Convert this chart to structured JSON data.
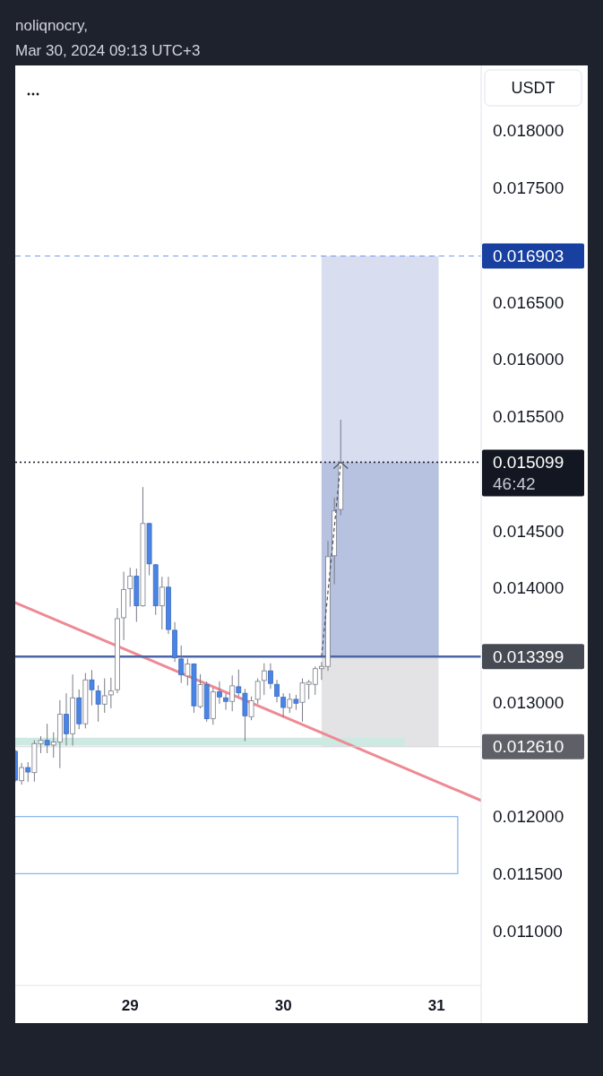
{
  "chart_data": {
    "type": "candlestick",
    "title": "noliqnocry,",
    "subtitle": "Mar 30, 2024 09:13 UTC+3",
    "ylabel": "USDT",
    "x": [
      "2024-03-28T06:00",
      "2024-03-28T07:00",
      "2024-03-28T08:00",
      "2024-03-28T09:00",
      "2024-03-28T10:00",
      "2024-03-28T11:00",
      "2024-03-28T12:00",
      "2024-03-28T13:00",
      "2024-03-28T14:00",
      "2024-03-28T15:00",
      "2024-03-28T16:00",
      "2024-03-28T17:00",
      "2024-03-28T18:00",
      "2024-03-28T19:00",
      "2024-03-28T20:00",
      "2024-03-28T21:00",
      "2024-03-28T22:00",
      "2024-03-28T23:00",
      "2024-03-29T00:00",
      "2024-03-29T01:00",
      "2024-03-29T02:00",
      "2024-03-29T03:00",
      "2024-03-29T04:00",
      "2024-03-29T05:00",
      "2024-03-29T06:00",
      "2024-03-29T07:00",
      "2024-03-29T08:00",
      "2024-03-29T09:00",
      "2024-03-29T10:00",
      "2024-03-29T11:00",
      "2024-03-29T12:00",
      "2024-03-29T13:00",
      "2024-03-29T14:00",
      "2024-03-29T15:00",
      "2024-03-29T16:00",
      "2024-03-29T17:00",
      "2024-03-29T18:00",
      "2024-03-29T19:00",
      "2024-03-29T20:00",
      "2024-03-29T21:00",
      "2024-03-29T22:00",
      "2024-03-29T23:00",
      "2024-03-30T00:00",
      "2024-03-30T01:00",
      "2024-03-30T02:00",
      "2024-03-30T03:00",
      "2024-03-30T04:00",
      "2024-03-30T05:00",
      "2024-03-30T06:00",
      "2024-03-30T07:00",
      "2024-03-30T08:00",
      "2024-03-30T09:00"
    ],
    "ohlc": [
      [
        0.01257,
        0.012585,
        0.0123,
        0.012318
      ],
      [
        0.012313,
        0.012468,
        0.012279,
        0.012428
      ],
      [
        0.012428,
        0.012475,
        0.012303,
        0.012389
      ],
      [
        0.012384,
        0.012667,
        0.012305,
        0.012638
      ],
      [
        0.012638,
        0.012703,
        0.012554,
        0.012666
      ],
      [
        0.012666,
        0.012811,
        0.012554,
        0.012625
      ],
      [
        0.012625,
        0.012737,
        0.012515,
        0.012651
      ],
      [
        0.012651,
        0.013017,
        0.012423,
        0.012894
      ],
      [
        0.012894,
        0.013078,
        0.01262,
        0.012724
      ],
      [
        0.012724,
        0.013242,
        0.01262,
        0.013038
      ],
      [
        0.013038,
        0.013111,
        0.012764,
        0.012811
      ],
      [
        0.012811,
        0.013255,
        0.012771,
        0.013195
      ],
      [
        0.013195,
        0.013281,
        0.012972,
        0.013109
      ],
      [
        0.013098,
        0.013148,
        0.012829,
        0.012983
      ],
      [
        0.012983,
        0.013208,
        0.012907,
        0.013056
      ],
      [
        0.013064,
        0.013213,
        0.012946,
        0.013098
      ],
      [
        0.013109,
        0.013823,
        0.013078,
        0.013731
      ],
      [
        0.013739,
        0.014142,
        0.013543,
        0.013985
      ],
      [
        0.013993,
        0.014176,
        0.013836,
        0.014102
      ],
      [
        0.014102,
        0.014169,
        0.013703,
        0.013843
      ],
      [
        0.013843,
        0.014882,
        0.013836,
        0.014563
      ],
      [
        0.014563,
        0.01457,
        0.01411,
        0.01421
      ],
      [
        0.014202,
        0.01421,
        0.013764,
        0.013843
      ],
      [
        0.013843,
        0.014097,
        0.013636,
        0.014006
      ],
      [
        0.014006,
        0.014097,
        0.013597,
        0.013636
      ],
      [
        0.013629,
        0.0137,
        0.013352,
        0.013389
      ],
      [
        0.013378,
        0.013496,
        0.013168,
        0.013239
      ],
      [
        0.013229,
        0.013381,
        0.013146,
        0.013334
      ],
      [
        0.013334,
        0.01334,
        0.012907,
        0.012968
      ],
      [
        0.012962,
        0.013245,
        0.012946,
        0.013153
      ],
      [
        0.013153,
        0.013182,
        0.012829,
        0.012855
      ],
      [
        0.012855,
        0.013125,
        0.012803,
        0.01309
      ],
      [
        0.01309,
        0.013182,
        0.012986,
        0.013046
      ],
      [
        0.013038,
        0.013078,
        0.012933,
        0.013007
      ],
      [
        0.013007,
        0.013234,
        0.012921,
        0.013143
      ],
      [
        0.013135,
        0.013286,
        0.013051,
        0.013082
      ],
      [
        0.013078,
        0.013117,
        0.012658,
        0.012881
      ],
      [
        0.012873,
        0.013051,
        0.012842,
        0.013012
      ],
      [
        0.013025,
        0.013208,
        0.012986,
        0.013182
      ],
      [
        0.01319,
        0.01334,
        0.013064,
        0.013274
      ],
      [
        0.013274,
        0.01334,
        0.013117,
        0.013164
      ],
      [
        0.013156,
        0.013195,
        0.012999,
        0.013051
      ],
      [
        0.013043,
        0.013078,
        0.012868,
        0.012954
      ],
      [
        0.012952,
        0.013078,
        0.012907,
        0.013025
      ],
      [
        0.013025,
        0.013064,
        0.012933,
        0.012991
      ],
      [
        0.012999,
        0.013208,
        0.012829,
        0.013168
      ],
      [
        0.013156,
        0.013195,
        0.013025,
        0.013175
      ],
      [
        0.013156,
        0.013313,
        0.013064,
        0.013293
      ],
      [
        0.013293,
        0.013352,
        0.013195,
        0.013313
      ],
      [
        0.013313,
        0.014411,
        0.013274,
        0.014273
      ],
      [
        0.014281,
        0.01479,
        0.014031,
        0.014673
      ],
      [
        0.014686,
        0.015471,
        0.014634,
        0.015099
      ]
    ],
    "colors": [
      "#4a84e6",
      "#ffffff",
      "#4a84e6",
      "#ffffff",
      "#ffffff",
      "#4a84e6",
      "#ffffff",
      "#ffffff",
      "#4a84e6",
      "#ffffff",
      "#4a84e6",
      "#ffffff",
      "#4a84e6",
      "#4a84e6",
      "#ffffff",
      "#ffffff",
      "#ffffff",
      "#ffffff",
      "#ffffff",
      "#4a84e6",
      "#ffffff",
      "#4a84e6",
      "#4a84e6",
      "#ffffff",
      "#4a84e6",
      "#4a84e6",
      "#4a84e6",
      "#ffffff",
      "#4a84e6",
      "#ffffff",
      "#4a84e6",
      "#ffffff",
      "#4a84e6",
      "#4a84e6",
      "#ffffff",
      "#4a84e6",
      "#4a84e6",
      "#ffffff",
      "#ffffff",
      "#ffffff",
      "#4a84e6",
      "#4a84e6",
      "#4a84e6",
      "#ffffff",
      "#4a84e6",
      "#ffffff",
      "#ffffff",
      "#ffffff",
      "#ffffff",
      "#ffffff",
      "#ffffff",
      "#ffffff"
    ],
    "xlim": [
      "2024-03-28T06:00",
      "2024-03-31T07:00"
    ],
    "xticks": [
      {
        "value": "2024-03-29T00:00",
        "label": "29"
      },
      {
        "value": "2024-03-30T00:00",
        "label": "30"
      },
      {
        "value": "2024-03-31T00:00",
        "label": "31"
      }
    ],
    "ylim": [
      0.01053,
      0.01857
    ],
    "yticks": [
      {
        "value": 0.011,
        "label": "0.011000"
      },
      {
        "value": 0.0115,
        "label": "0.011500"
      },
      {
        "value": 0.012,
        "label": "0.012000"
      },
      {
        "value": 0.013,
        "label": "0.013000"
      },
      {
        "value": 0.014,
        "label": "0.014000"
      },
      {
        "value": 0.0145,
        "label": "0.014500"
      },
      {
        "value": 0.0155,
        "label": "0.015500"
      },
      {
        "value": 0.016,
        "label": "0.016000"
      },
      {
        "value": 0.0165,
        "label": "0.016500"
      },
      {
        "value": 0.0175,
        "label": "0.017500"
      },
      {
        "value": 0.018,
        "label": "0.018000"
      }
    ],
    "series": [
      {
        "type": "area",
        "x": [
          "2024-03-30T06:00",
          "2024-03-31T00:20",
          "2024-03-31T00:20",
          "2024-03-30T06:00"
        ],
        "values": [
          0.016903,
          0.016903,
          0.013399,
          0.013399
        ],
        "color": "#d8ddef"
      },
      {
        "type": "area",
        "x": [
          "2024-03-30T06:00",
          "2024-03-31T00:20",
          "2024-03-31T00:20",
          "2024-03-30T06:00"
        ],
        "values": [
          0.015099,
          0.015099,
          0.013399,
          0.013399
        ],
        "color": "#b7c2e0"
      },
      {
        "type": "area",
        "x": [
          "2024-03-30T06:00",
          "2024-03-31T00:20",
          "2024-03-31T00:20",
          "2024-03-30T06:00"
        ],
        "values": [
          0.013399,
          0.013399,
          0.01261,
          0.01261
        ],
        "color": "#e3e3e5"
      },
      {
        "type": "area",
        "x": [
          "2024-03-28T06:00",
          "2024-03-30T19:00",
          "2024-03-30T19:00",
          "2024-03-28T06:00"
        ],
        "values": [
          0.01269,
          0.01269,
          0.01262,
          0.01262
        ],
        "color": "#cdeae2"
      },
      {
        "type": "line",
        "x": [
          "2024-03-28T06:00",
          "2024-03-31T03:20",
          "2024-03-31T03:20",
          "2024-03-28T06:00"
        ],
        "values": [
          0.012,
          0.012,
          0.0115,
          0.0115
        ],
        "color": "#8db6ec"
      },
      {
        "type": "line",
        "x": [
          "2024-03-28T06:00",
          "2024-03-31T07:00"
        ],
        "values": [
          0.01387,
          0.01214
        ],
        "color": "#ee8a94"
      }
    ],
    "ref_lines": [
      {
        "axis": "y",
        "value": 0.016903,
        "label": "0.016903",
        "color": "#7396ea",
        "line_style": "dashed"
      },
      {
        "axis": "y",
        "value": 0.015099,
        "label": "0.015099",
        "color": "#131722",
        "line_style": "dotted"
      },
      {
        "axis": "y",
        "value": 0.013399,
        "label": "0.013399",
        "color": "#4c66a8",
        "line_style": "solid"
      },
      {
        "axis": "y",
        "value": 0.01261,
        "label": "0.012610",
        "color": "#d4d4d8",
        "line_style": "solid"
      }
    ],
    "annotations": [
      "46:42"
    ]
  }
}
